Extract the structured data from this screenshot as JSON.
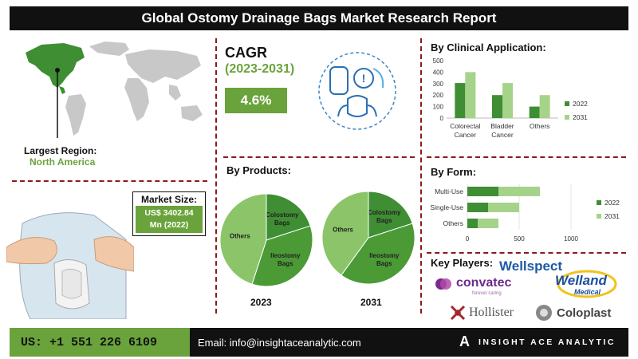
{
  "title": "Global Ostomy Drainage Bags Market Research Report",
  "largest_region": {
    "label": "Largest Region:",
    "value": "North America"
  },
  "market_size": {
    "label": "Market Size:",
    "value_line1": "US$ 3402.84",
    "value_line2": "Mn (2022)"
  },
  "cagr": {
    "label": "CAGR",
    "period": "(2023-2031)",
    "value": "4.6%"
  },
  "products": {
    "heading": "By Products:",
    "year_a": "2023",
    "year_b": "2031"
  },
  "clinical": {
    "heading": "By Clinical Application:"
  },
  "form": {
    "heading": "By Form:"
  },
  "key_players": {
    "heading": "Key Players:",
    "logos": [
      "Wellspect",
      "convatec",
      "forever caring",
      "Welland",
      "Medical",
      "Hollister",
      "Coloplast"
    ]
  },
  "footer": {
    "phone": "US: +1 551 226 6109",
    "email": "Email: info@insightaceanalytic.com",
    "brand": "INSIGHT ACE ANALYTIC",
    "brand_mark": "A"
  },
  "colors": {
    "dark_green": "#3f8e33",
    "light_green": "#a6d38a",
    "accent": "#6aa33b",
    "pie_dark": "#4b9a36",
    "pie_light": "#8cc46a",
    "divider": "#8b1a1a"
  },
  "chart_data": [
    {
      "type": "bar",
      "title": "By Clinical Application:",
      "categories": [
        "Colorectal Cancer",
        "Bladder Cancer",
        "Others"
      ],
      "series": [
        {
          "name": "2022",
          "values": [
            305,
            200,
            100
          ]
        },
        {
          "name": "2031",
          "values": [
            400,
            305,
            200
          ]
        }
      ],
      "ylim": [
        0,
        500
      ],
      "yticks": [
        0,
        100,
        200,
        300,
        400,
        500
      ],
      "grid": false,
      "legend": "right"
    },
    {
      "type": "bar",
      "orientation": "horizontal",
      "title": "By Form:",
      "categories": [
        "Multi-Use",
        "Single-Use",
        "Others"
      ],
      "series": [
        {
          "name": "2022",
          "values": [
            300,
            200,
            100
          ]
        },
        {
          "name": "2031",
          "values": [
            700,
            500,
            300
          ]
        }
      ],
      "xlim": [
        0,
        1000
      ],
      "xticks": [
        0,
        500,
        1000
      ],
      "legend": "right"
    },
    {
      "type": "pie",
      "title": "2023",
      "labels": [
        "Colostomy Bags",
        "Ileostomy Bags",
        "Others"
      ],
      "values": [
        20,
        35,
        45
      ]
    },
    {
      "type": "pie",
      "title": "2031",
      "labels": [
        "Colostomy Bags",
        "Ileostomy Bags",
        "Others"
      ],
      "values": [
        20,
        40,
        40
      ]
    }
  ]
}
